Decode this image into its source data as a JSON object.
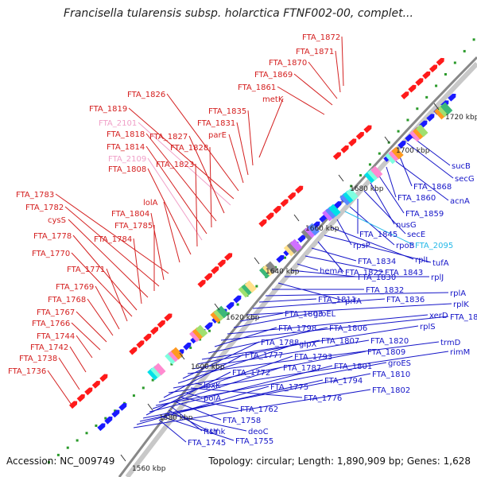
{
  "header": {
    "title": "Francisella tularensis subsp. holarctica FTNF002-00, complet..."
  },
  "footer": {
    "accession": "Accession: NC_009749",
    "topology": "Topology: circular; Length: 1,890,909 bp; Genes: 1,628"
  },
  "colors": {
    "backbone": "#888888",
    "left_labels": "#d42020",
    "left_labels_alt": "#f0a0c8",
    "right_labels": "#1515c8",
    "right_labels_alt": "#25b8e8",
    "gene_red": "#ff1a1a",
    "gene_blue": "#1a1aff",
    "tick_green": "#2a9a2a"
  },
  "icons": [
    "forward-strand-arrow-icon",
    "reverse-strand-arrow-icon"
  ],
  "scale_ticks": [
    "1560 kbp",
    "1580 kbp",
    "1600 kbp",
    "1620 kbp",
    "1640 kbp",
    "1660 kbp",
    "1680 kbp",
    "1700 kbp",
    "1720 kbp"
  ],
  "left_labels": [
    "FTA_1872",
    "FTA_1871",
    "FTA_1870",
    "FTA_1869",
    "FTA_1861",
    "metK",
    "FTA_1835",
    "FTA_1831",
    "parE",
    "FTA_1826",
    "FTA_1819",
    "FTA_2101",
    "FTA_1827",
    "FTA_1818",
    "FTA_1828",
    "FTA_1814",
    "FTA_2109",
    "FTA_1823",
    "FTA_1808",
    "lolA",
    "FTA_1783",
    "FTA_1804",
    "FTA_1782",
    "FTA_1785",
    "cysS",
    "FTA_1784",
    "FTA_1778",
    "FTA_1770",
    "FTA_1771",
    "FTA_1769",
    "FTA_1768",
    "FTA_1767",
    "FTA_1766",
    "FTA_1744",
    "FTA_1742",
    "FTA_1738",
    "FTA_1736"
  ],
  "right_labels": [
    "sucB",
    "secG",
    "FTA_1868",
    "acnA",
    "FTA_1860",
    "FTA_1859",
    "nusG",
    "secE",
    "FTA_1845",
    "rpoB",
    "FTA_2095",
    "rpsP",
    "rplL",
    "tufA",
    "FTA_1822",
    "FTA_1834",
    "FTA_1843",
    "hemA",
    "FTA_1830",
    "rplJ",
    "prfA",
    "FTA_1832",
    "rplA",
    "FTA_1811",
    "FTA_1836",
    "rplK",
    "FTA_1803",
    "groEL",
    "xerD",
    "FTA_1844",
    "FTA_1798",
    "FTA_1806",
    "rplS",
    "FTA_1807",
    "FTA_1820",
    "trmD",
    "FTA_1788",
    "glpX",
    "FTA_1809",
    "rimM",
    "FTA_1777",
    "FTA_1793",
    "groES",
    "FTA_1787",
    "FTA_1801",
    "FTA_1772",
    "FTA_1810",
    "FTA_1794",
    "FTA_1775",
    "FTA_1802",
    "lpxK",
    "FTA_1776",
    "polA",
    "FTA_1762",
    "FTA_1758",
    "ftsY",
    "tmk",
    "deoC",
    "FTA_1755",
    "FTA_1745"
  ]
}
